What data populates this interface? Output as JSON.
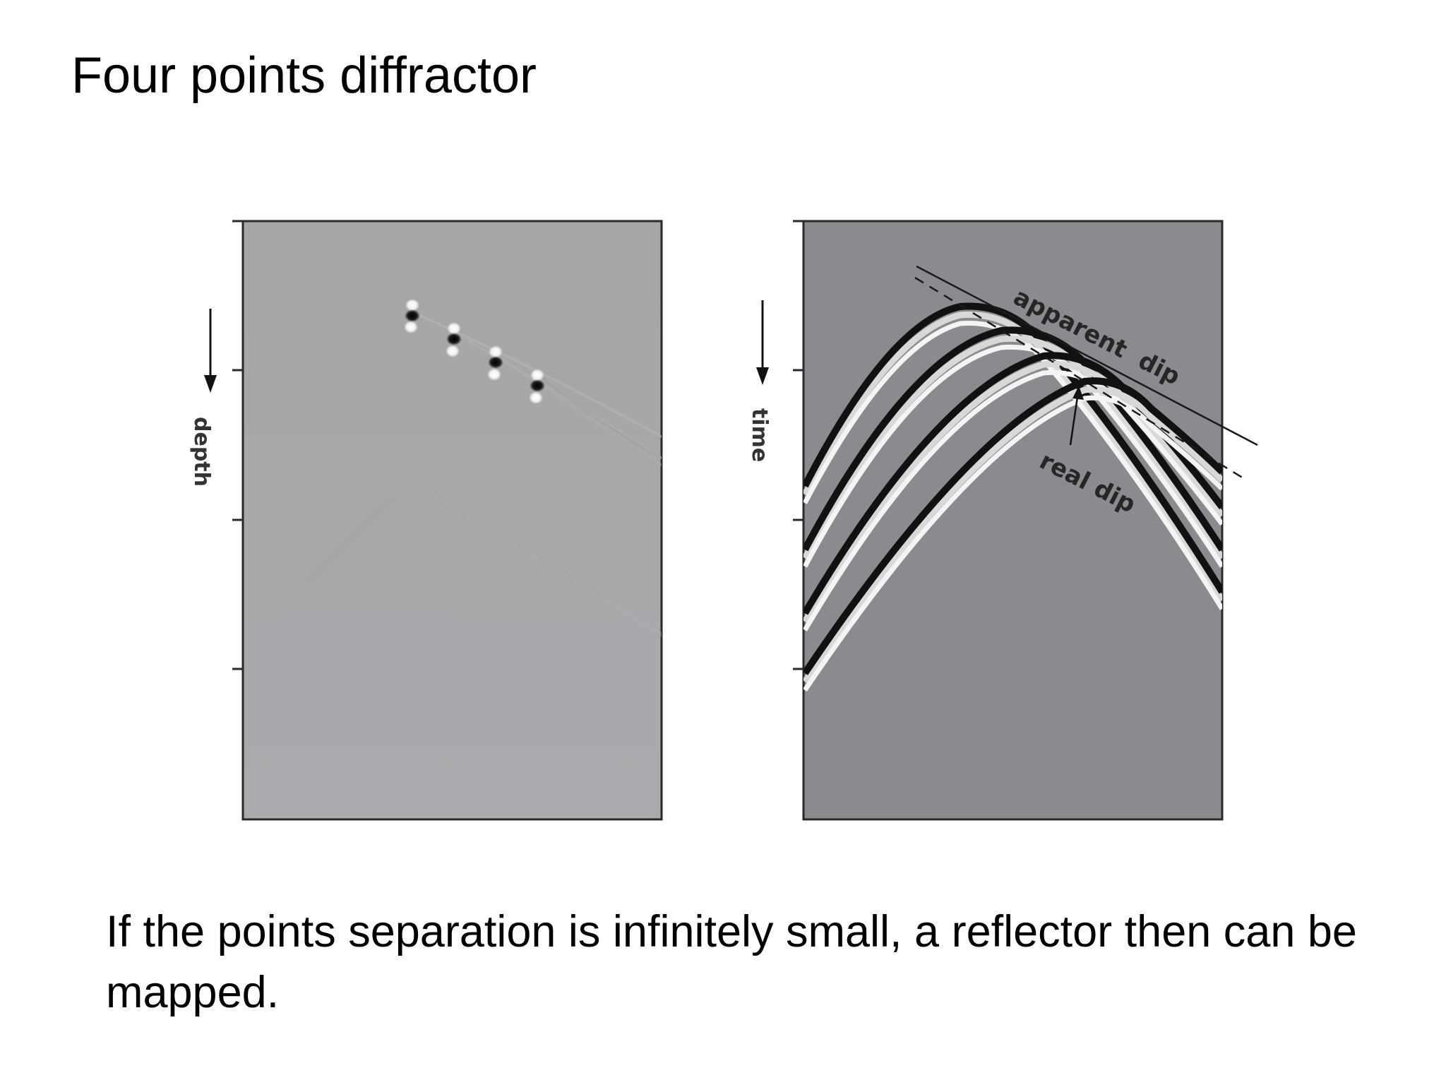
{
  "slide": {
    "title": "Four points diffractor",
    "caption": "If the points separation is infinitely small, a reflector then can be mapped."
  },
  "figure": {
    "left_panel": {
      "axis_label": "depth",
      "point_count": 4
    },
    "right_panel": {
      "axis_label": "time",
      "annotations": {
        "apparent_dip": "apparent  dip",
        "real_dip": "real dip"
      },
      "hyperbola_count": 4
    }
  },
  "colors": {
    "background": "#ffffff",
    "left_panel_fill": "#a9a9ac",
    "right_panel_fill": "#8b8a8e",
    "frame": "#2a2a2a"
  }
}
